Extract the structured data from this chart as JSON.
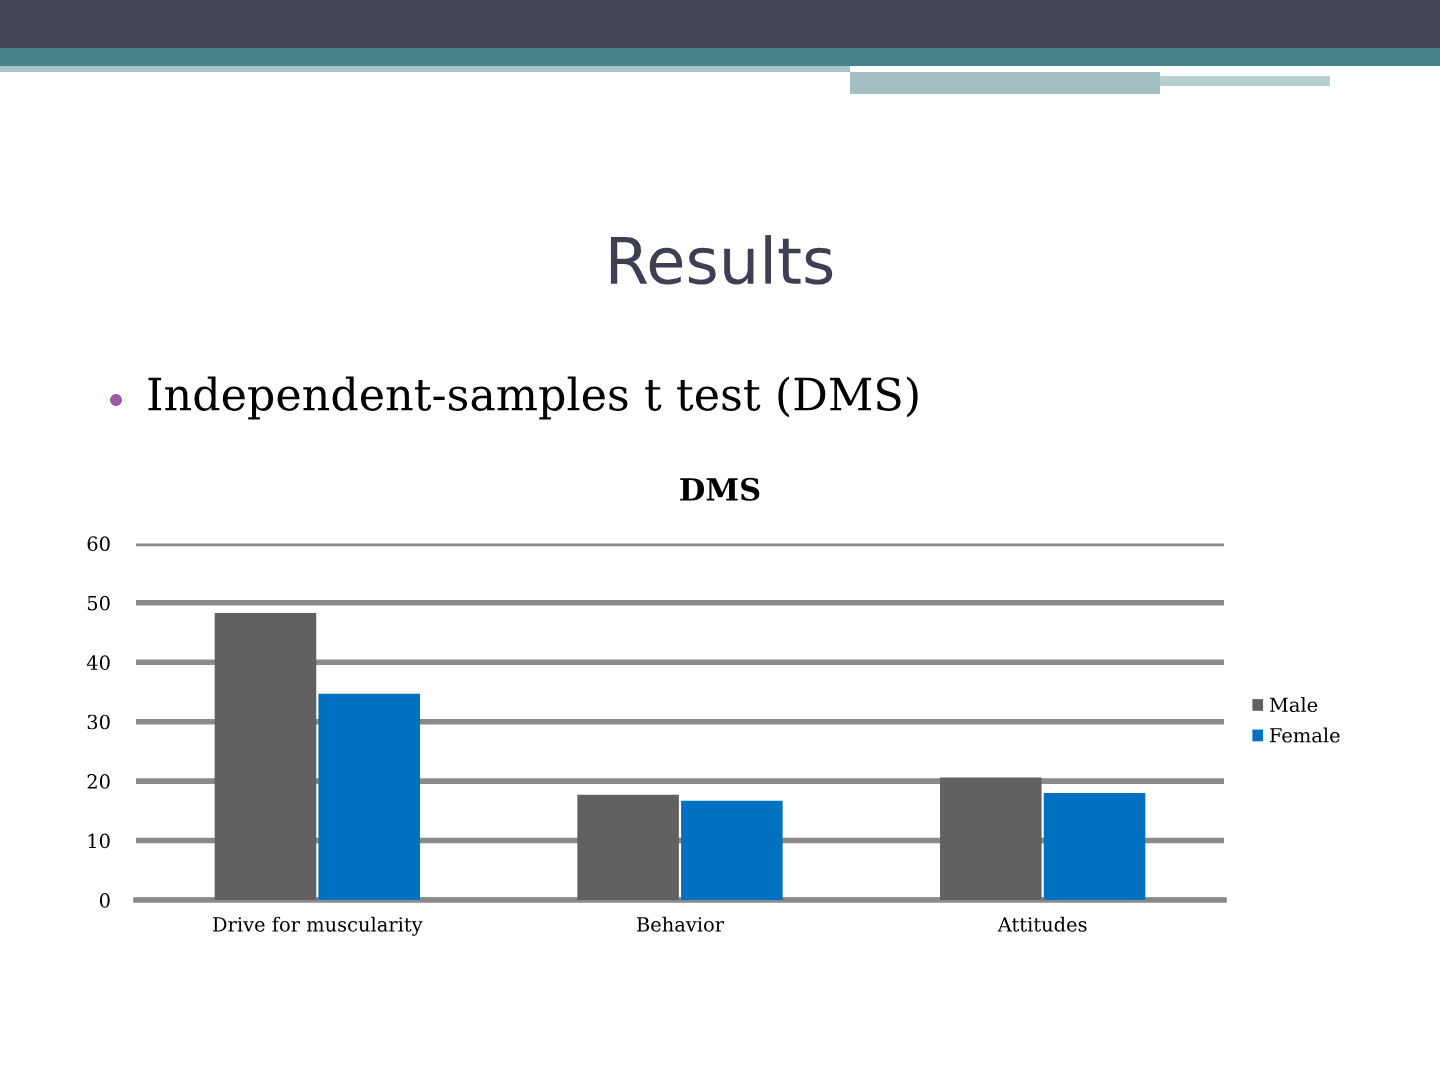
{
  "chart_data": {
    "type": "bar",
    "title": "Results",
    "subtitle": "Independent-samples t test (DMS)",
    "annotations": [
      "DMS"
    ],
    "categories": [
      "Drive for muscularity",
      "Behavior",
      "Attitudes"
    ],
    "series": [
      {
        "name": "Male",
        "color": "#616161",
        "values": [
          48.3,
          17.7,
          20.6
        ]
      },
      {
        "name": "Female",
        "color": "#0070c0",
        "values": [
          34.7,
          16.7,
          18.0
        ]
      }
    ],
    "ylim": [
      0,
      60
    ],
    "yticks": [
      0,
      10,
      20,
      30,
      40,
      50,
      60
    ],
    "grid": "y",
    "legend": "right"
  }
}
